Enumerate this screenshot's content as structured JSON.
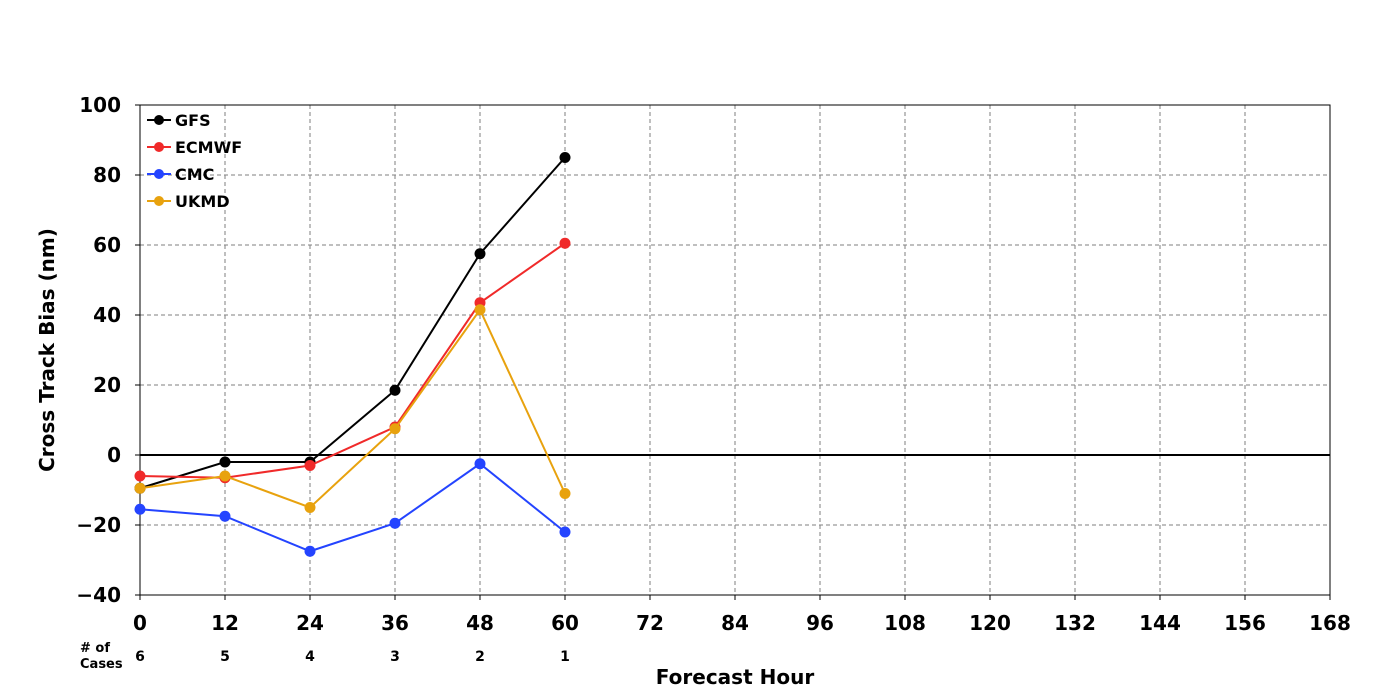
{
  "chart_data": {
    "type": "line",
    "xlabel": "Forecast Hour",
    "ylabel": "Cross Track Bias (nm)",
    "xlim": [
      0,
      168
    ],
    "ylim": [
      -40,
      100
    ],
    "x_ticks": [
      0,
      12,
      24,
      36,
      48,
      60,
      72,
      84,
      96,
      108,
      120,
      132,
      144,
      156,
      168
    ],
    "y_ticks": [
      -40,
      -20,
      0,
      20,
      40,
      60,
      80,
      100
    ],
    "y_tick_labels": [
      "−40",
      "−20",
      "0",
      "20",
      "40",
      "60",
      "80",
      "100"
    ],
    "grid": true,
    "legend_position": "top-left",
    "x": [
      0,
      12,
      24,
      36,
      48,
      60
    ],
    "series": [
      {
        "name": "GFS",
        "color": "#000000",
        "values": [
          -9.5,
          -2,
          -2,
          18.5,
          57.5,
          85
        ]
      },
      {
        "name": "ECMWF",
        "color": "#f02a2a",
        "values": [
          -6,
          -6.5,
          -3,
          8,
          43.5,
          60.5
        ]
      },
      {
        "name": "CMC",
        "color": "#2444ff",
        "values": [
          -15.5,
          -17.5,
          -27.5,
          -19.5,
          -2.5,
          -22
        ]
      },
      {
        "name": "UKMD",
        "color": "#e8a20e",
        "values": [
          -9.5,
          -6,
          -15,
          7.5,
          41.5,
          -11
        ]
      }
    ],
    "cases": {
      "label_line1": "# of",
      "label_line2": "Cases",
      "x": [
        0,
        12,
        24,
        36,
        48,
        60
      ],
      "values": [
        "6",
        "5",
        "4",
        "3",
        "2",
        "1"
      ]
    }
  }
}
